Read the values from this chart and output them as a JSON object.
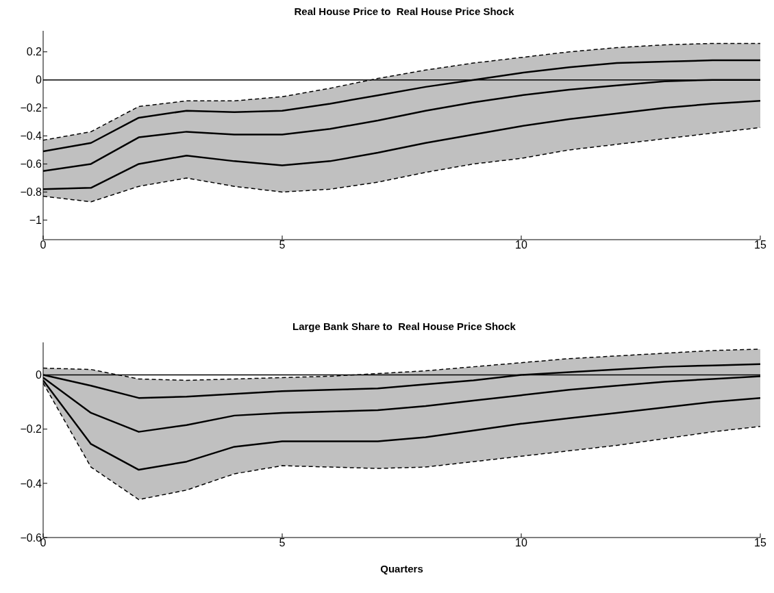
{
  "chart_data": [
    {
      "type": "line",
      "title": "Real House Price to  Real House Price Shock",
      "x": [
        0,
        1,
        2,
        3,
        4,
        5,
        6,
        7,
        8,
        9,
        10,
        11,
        12,
        13,
        14,
        15
      ],
      "xlim": [
        0,
        15
      ],
      "xticks": [
        0,
        5,
        10,
        15
      ],
      "ylim": [
        -1.14,
        0.35
      ],
      "yticks": [
        {
          "value": -1,
          "label": "−1"
        },
        {
          "value": -0.8,
          "label": "−0.8"
        },
        {
          "value": -0.6,
          "label": "−0.6"
        },
        {
          "value": -0.4,
          "label": "−0.4"
        },
        {
          "value": -0.2,
          "label": "−0.2"
        },
        {
          "value": 0,
          "label": "0"
        },
        {
          "value": 0.2,
          "label": "0.2"
        }
      ],
      "grid": false,
      "legend": false,
      "marker": "none",
      "ref_lines": [
        {
          "axis": "y",
          "value": 0,
          "color": "#000000"
        }
      ],
      "series": [
        {
          "color": "#000000",
          "line_style": "dashed",
          "values": [
            -0.43,
            -0.37,
            -0.19,
            -0.15,
            -0.15,
            -0.12,
            -0.06,
            0.01,
            0.07,
            0.12,
            0.16,
            0.2,
            0.23,
            0.25,
            0.26,
            0.26
          ]
        },
        {
          "color": "#000000",
          "line_style": "solid",
          "values": [
            -0.51,
            -0.45,
            -0.27,
            -0.22,
            -0.23,
            -0.22,
            -0.17,
            -0.11,
            -0.05,
            0.0,
            0.05,
            0.09,
            0.12,
            0.13,
            0.14,
            0.14
          ]
        },
        {
          "color": "#000000",
          "line_style": "solid",
          "values": [
            -0.65,
            -0.6,
            -0.41,
            -0.37,
            -0.39,
            -0.39,
            -0.35,
            -0.29,
            -0.22,
            -0.16,
            -0.11,
            -0.07,
            -0.04,
            -0.01,
            0.0,
            0.0
          ],
          "lower": [
            -0.83,
            -0.87,
            -0.76,
            -0.7,
            -0.76,
            -0.8,
            -0.78,
            -0.73,
            -0.66,
            -0.6,
            -0.56,
            -0.5,
            -0.46,
            -0.42,
            -0.38,
            -0.34
          ],
          "upper": [
            -0.43,
            -0.37,
            -0.19,
            -0.15,
            -0.15,
            -0.12,
            -0.06,
            0.01,
            0.07,
            0.12,
            0.16,
            0.2,
            0.23,
            0.25,
            0.26,
            0.26
          ]
        },
        {
          "color": "#000000",
          "line_style": "solid",
          "values": [
            -0.78,
            -0.77,
            -0.6,
            -0.54,
            -0.58,
            -0.61,
            -0.58,
            -0.52,
            -0.45,
            -0.39,
            -0.33,
            -0.28,
            -0.24,
            -0.2,
            -0.17,
            -0.15
          ]
        },
        {
          "color": "#000000",
          "line_style": "dashed",
          "values": [
            -0.83,
            -0.87,
            -0.76,
            -0.7,
            -0.76,
            -0.8,
            -0.78,
            -0.73,
            -0.66,
            -0.6,
            -0.56,
            -0.5,
            -0.46,
            -0.42,
            -0.38,
            -0.34
          ]
        }
      ]
    },
    {
      "type": "line",
      "title": "Large Bank Share to  Real House Price Shock",
      "xlabel": "Quarters",
      "x": [
        0,
        1,
        2,
        3,
        4,
        5,
        6,
        7,
        8,
        9,
        10,
        11,
        12,
        13,
        14,
        15
      ],
      "xlim": [
        0,
        15
      ],
      "xticks": [
        0,
        5,
        10,
        15
      ],
      "ylim": [
        -0.6,
        0.12
      ],
      "yticks": [
        {
          "value": -0.6,
          "label": "−0.6"
        },
        {
          "value": -0.4,
          "label": "−0.4"
        },
        {
          "value": -0.2,
          "label": "−0.2"
        },
        {
          "value": 0,
          "label": "0"
        }
      ],
      "grid": false,
      "legend": false,
      "marker": "none",
      "ref_lines": [
        {
          "axis": "y",
          "value": 0,
          "color": "#000000"
        }
      ],
      "series": [
        {
          "color": "#000000",
          "line_style": "dashed",
          "values": [
            0.025,
            0.02,
            -0.015,
            -0.02,
            -0.015,
            -0.01,
            -0.005,
            0.005,
            0.015,
            0.03,
            0.045,
            0.06,
            0.07,
            0.08,
            0.09,
            0.095
          ]
        },
        {
          "color": "#000000",
          "line_style": "solid",
          "values": [
            0.0,
            -0.04,
            -0.085,
            -0.08,
            -0.07,
            -0.06,
            -0.055,
            -0.05,
            -0.035,
            -0.02,
            0.0,
            0.01,
            0.02,
            0.03,
            0.035,
            0.04
          ]
        },
        {
          "color": "#000000",
          "line_style": "solid",
          "values": [
            -0.01,
            -0.14,
            -0.21,
            -0.185,
            -0.15,
            -0.14,
            -0.135,
            -0.13,
            -0.115,
            -0.095,
            -0.075,
            -0.055,
            -0.04,
            -0.025,
            -0.015,
            -0.005
          ],
          "lower": [
            -0.03,
            -0.34,
            -0.46,
            -0.425,
            -0.365,
            -0.335,
            -0.34,
            -0.345,
            -0.34,
            -0.32,
            -0.3,
            -0.28,
            -0.26,
            -0.235,
            -0.21,
            -0.19
          ],
          "upper": [
            0.025,
            0.02,
            -0.015,
            -0.02,
            -0.015,
            -0.01,
            -0.005,
            0.005,
            0.015,
            0.03,
            0.045,
            0.06,
            0.07,
            0.08,
            0.09,
            0.095
          ]
        },
        {
          "color": "#000000",
          "line_style": "solid",
          "values": [
            -0.02,
            -0.255,
            -0.35,
            -0.32,
            -0.265,
            -0.245,
            -0.245,
            -0.245,
            -0.23,
            -0.205,
            -0.18,
            -0.16,
            -0.14,
            -0.12,
            -0.1,
            -0.085
          ]
        },
        {
          "color": "#000000",
          "line_style": "dashed",
          "values": [
            -0.03,
            -0.34,
            -0.46,
            -0.425,
            -0.365,
            -0.335,
            -0.34,
            -0.345,
            -0.34,
            -0.32,
            -0.3,
            -0.28,
            -0.26,
            -0.235,
            -0.21,
            -0.19
          ]
        }
      ]
    }
  ]
}
